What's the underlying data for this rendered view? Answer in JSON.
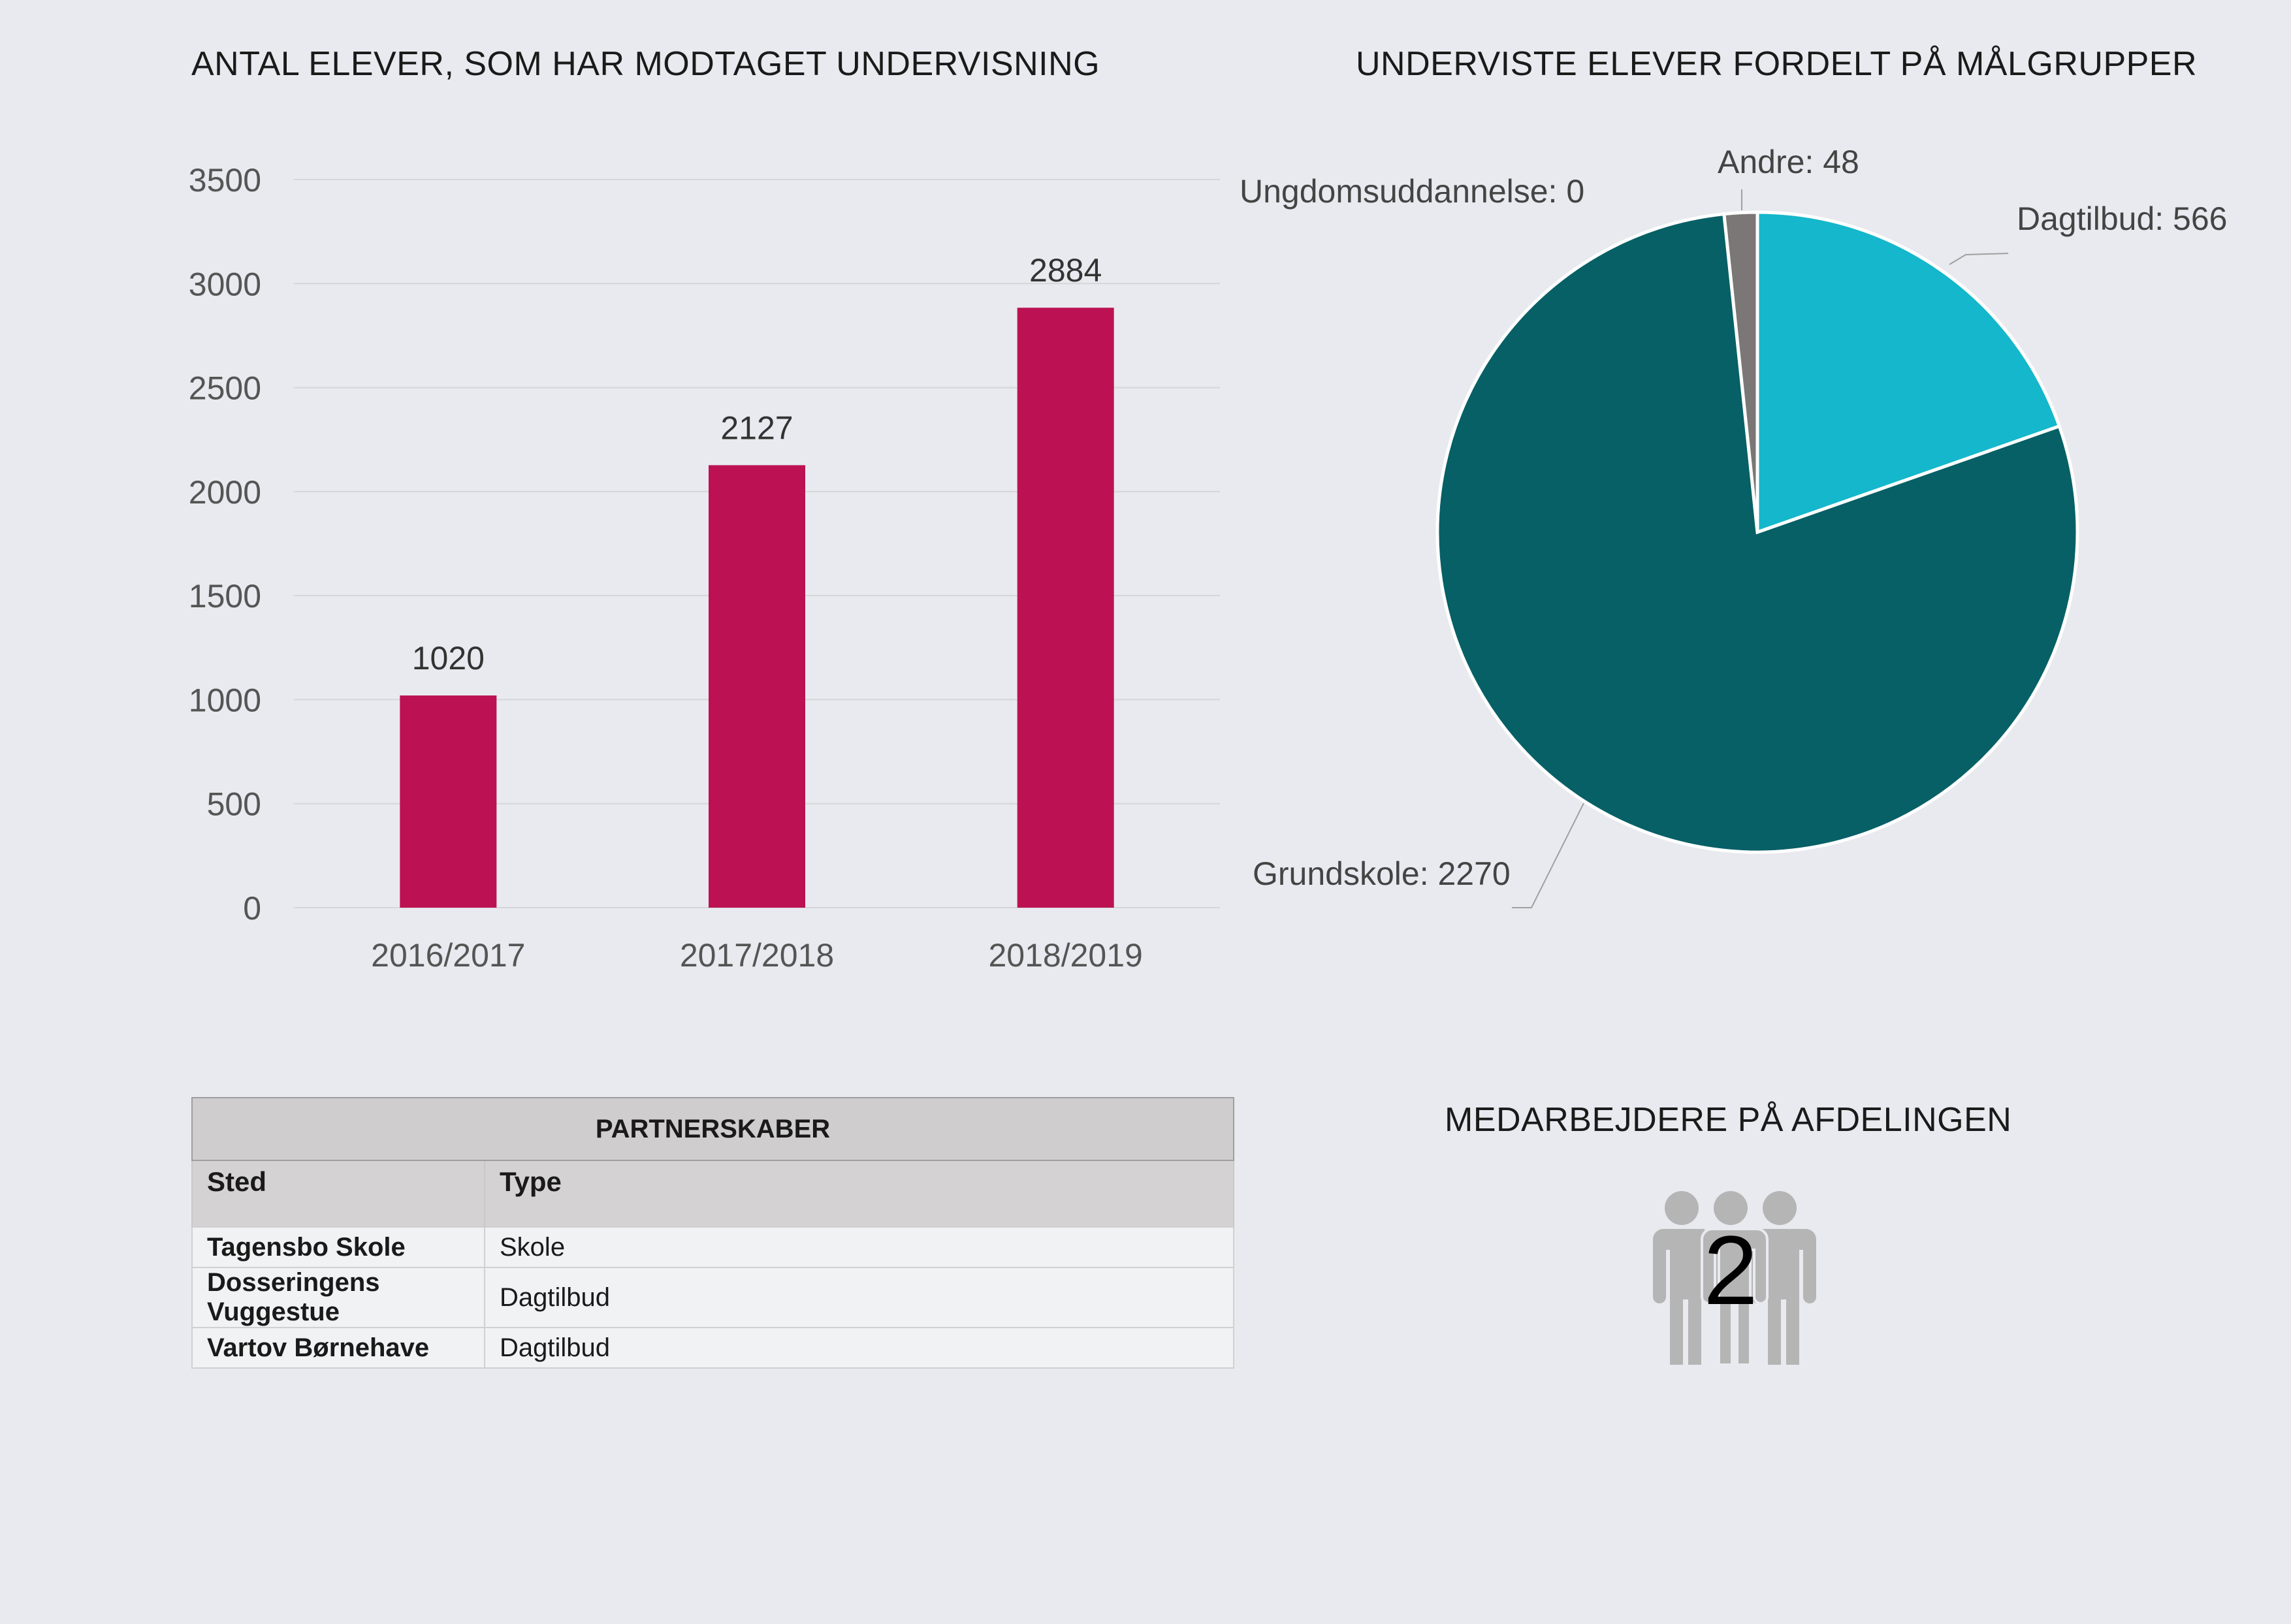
{
  "bar_chart": {
    "title": "ANTAL ELEVER, SOM HAR MODTAGET UNDERVISNING"
  },
  "pie_chart": {
    "title": "UNDERVISTE ELEVER FORDELT PÅ MÅLGRUPPER"
  },
  "chart_data": [
    {
      "type": "bar",
      "title": "ANTAL ELEVER, SOM HAR MODTAGET UNDERVISNING",
      "categories": [
        "2016/2017",
        "2017/2018",
        "2018/2019"
      ],
      "values": [
        1020,
        2127,
        2884
      ],
      "ylim": [
        0,
        3500
      ],
      "yticks": [
        0,
        500,
        1000,
        1500,
        2000,
        2500,
        3000,
        3500
      ],
      "grid": true,
      "color": "#bc1253"
    },
    {
      "type": "pie",
      "title": "UNDERVISTE ELEVER FORDELT PÅ MÅLGRUPPER",
      "slices": [
        {
          "label": "Dagtilbud",
          "value": 566,
          "color": "#14b7cb"
        },
        {
          "label": "Grundskole",
          "value": 2270,
          "color": "#066066"
        },
        {
          "label": "Ungdomsuddannelse",
          "value": 0,
          "color": "#2f6f74"
        },
        {
          "label": "Andre",
          "value": 48,
          "color": "#7b7776"
        }
      ]
    }
  ],
  "partnerships": {
    "title": "PARTNERSKABER",
    "columns": [
      "Sted",
      "Type"
    ],
    "rows": [
      {
        "sted": "Tagensbo Skole",
        "type": "Skole"
      },
      {
        "sted": "Dosseringens Vuggestue",
        "type": "Dagtilbud"
      },
      {
        "sted": "Vartov Børnehave",
        "type": "Dagtilbud"
      }
    ]
  },
  "staff": {
    "title": "MEDARBEJDERE PÅ AFDELINGEN",
    "count": "2",
    "icon": "people-group-icon"
  }
}
